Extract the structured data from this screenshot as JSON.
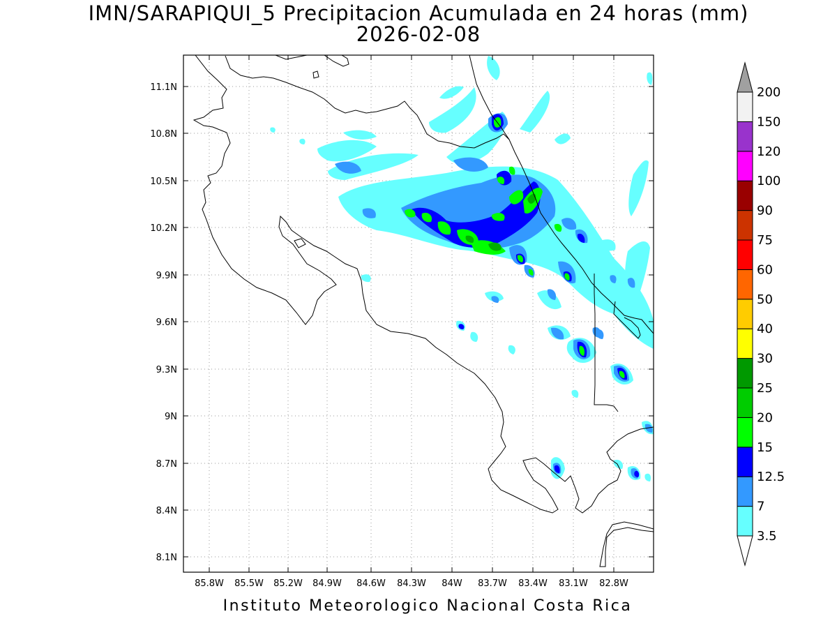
{
  "title": {
    "line1": "IMN/SARAPIQUI_5 Precipitacion Acumulada en 24 horas (mm)",
    "line2": "2026-02-08"
  },
  "footer": "Instituto Meteorologico Nacional Costa Rica",
  "lat_ticks": [
    "11.1N",
    "10.8N",
    "10.5N",
    "10.2N",
    "9.9N",
    "9.6N",
    "9.3N",
    "9N",
    "8.7N",
    "8.4N",
    "8.1N"
  ],
  "lon_ticks": [
    "85.8W",
    "85.5W",
    "85.2W",
    "84.9W",
    "84.6W",
    "84.3W",
    "84W",
    "83.7W",
    "83.4W",
    "83.1W",
    "82.8W"
  ],
  "colorbar": {
    "labels": [
      "3.5",
      "7",
      "12.5",
      "15",
      "20",
      "25",
      "30",
      "40",
      "50",
      "60",
      "75",
      "90",
      "100",
      "120",
      "150",
      "200"
    ],
    "colors": [
      "#66ffff",
      "#3399ff",
      "#0000ff",
      "#00ff00",
      "#00cc00",
      "#009900",
      "#ffff00",
      "#ffcc00",
      "#ff6600",
      "#ff0000",
      "#cc3300",
      "#990000",
      "#ff00ff",
      "#9933cc",
      "#f2f2f2",
      "#a0a0a0"
    ]
  },
  "legend": {
    "low": "#66ffff",
    "mid": "#3399ff",
    "high": "#0000ff",
    "peak": "#00ff00",
    "core": "#00b000"
  }
}
